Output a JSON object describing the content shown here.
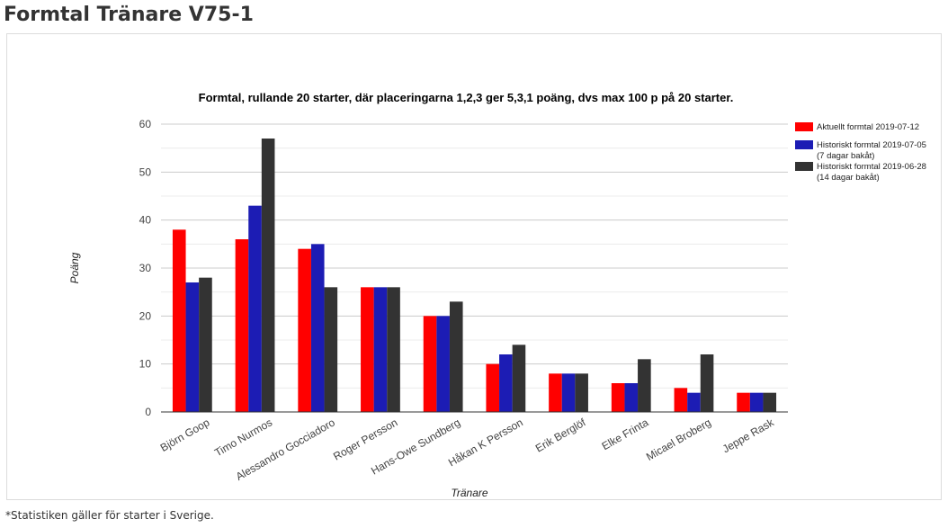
{
  "page": {
    "title": "Formtal Tränare V75-1",
    "footnote": "*Statistiken gäller för starter i Sverige."
  },
  "chart_data": {
    "type": "bar",
    "title": "Formtal, rullande 20 starter, där placeringarna 1,2,3 ger 5,3,1 poäng, dvs max 100 p på 20 starter.",
    "xlabel": "Tränare",
    "ylabel": "Poäng",
    "ylim": [
      0,
      60
    ],
    "yticks": [
      0,
      10,
      20,
      30,
      40,
      50,
      60
    ],
    "grid": true,
    "legend_position": "right",
    "categories": [
      "Björn Goop",
      "Timo Nurmos",
      "Alessandro Gocciadoro",
      "Roger Persson",
      "Hans-Owe Sundberg",
      "Håkan K Persson",
      "Erik Berglöf",
      "Elke Frinta",
      "Micael Broberg",
      "Jeppe Rask"
    ],
    "series": [
      {
        "name": "Aktuellt formtal 2019-07-12",
        "color": "#ff0000",
        "values": [
          38,
          36,
          34,
          26,
          20,
          10,
          8,
          6,
          5,
          4
        ]
      },
      {
        "name": "Historiskt formtal 2019-07-05 (7 dagar bakåt)",
        "name_lines": [
          "Historiskt formtal 2019-07-05",
          "(7 dagar bakåt)"
        ],
        "color": "#1c1cb4",
        "values": [
          27,
          43,
          35,
          26,
          20,
          12,
          8,
          6,
          4,
          4
        ]
      },
      {
        "name": "Historiskt formtal 2019-06-28 (14 dagar bakåt)",
        "name_lines": [
          "Historiskt formtal 2019-06-28",
          "(14 dagar bakåt)"
        ],
        "color": "#333333",
        "values": [
          28,
          57,
          26,
          26,
          23,
          14,
          8,
          11,
          12,
          4
        ]
      }
    ]
  }
}
